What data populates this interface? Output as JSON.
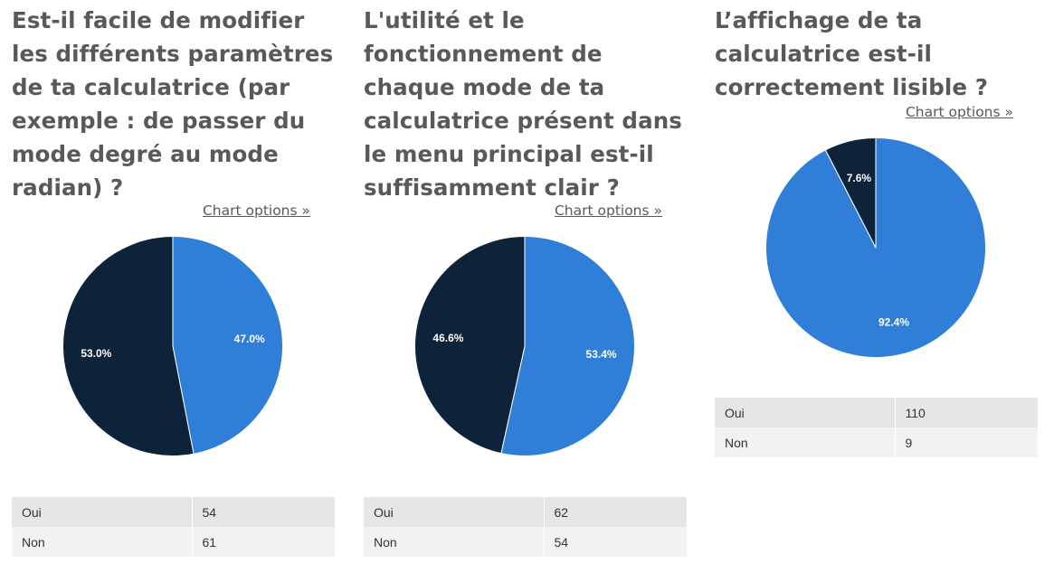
{
  "panels": [
    {
      "title": "Est-il facile de modifier les différents paramètres de ta calculatrice (par exemple : de passer du mode degré au mode radian) ?",
      "chart_options_label": "Chart options »",
      "table": [
        {
          "label": "Oui",
          "value": "54"
        },
        {
          "label": "Non",
          "value": "61"
        }
      ]
    },
    {
      "title": "L'utilité et le fonctionnement de chaque mode de ta calculatrice présent dans le menu principal est-il suffisamment clair ?",
      "chart_options_label": "Chart options »",
      "table": [
        {
          "label": "Oui",
          "value": "62"
        },
        {
          "label": "Non",
          "value": "54"
        }
      ]
    },
    {
      "title": "L’affichage de ta calculatrice est-il correctement lisible ?",
      "chart_options_label": "Chart options »",
      "table": [
        {
          "label": "Oui",
          "value": "110"
        },
        {
          "label": "Non",
          "value": "9"
        }
      ]
    }
  ],
  "colors": {
    "oui": "#2f7ed8",
    "non": "#0d233a"
  },
  "chart_data": [
    {
      "type": "pie",
      "title": "Est-il facile de modifier les différents paramètres de ta calculatrice (par exemple : de passer du mode degré au mode radian) ?",
      "categories": [
        "Oui",
        "Non"
      ],
      "values": [
        54,
        61
      ],
      "percent_labels": [
        "47.0%",
        "53.0%"
      ],
      "colors": [
        "#2f7ed8",
        "#0d233a"
      ]
    },
    {
      "type": "pie",
      "title": "L'utilité et le fonctionnement de chaque mode de ta calculatrice présent dans le menu principal est-il suffisamment clair ?",
      "categories": [
        "Oui",
        "Non"
      ],
      "values": [
        62,
        54
      ],
      "percent_labels": [
        "53.4%",
        "46.6%"
      ],
      "colors": [
        "#2f7ed8",
        "#0d233a"
      ]
    },
    {
      "type": "pie",
      "title": "L’affichage de ta calculatrice est-il correctement lisible ?",
      "categories": [
        "Oui",
        "Non"
      ],
      "values": [
        110,
        9
      ],
      "percent_labels": [
        "92.4%",
        "7.6%"
      ],
      "colors": [
        "#2f7ed8",
        "#0d233a"
      ]
    }
  ]
}
